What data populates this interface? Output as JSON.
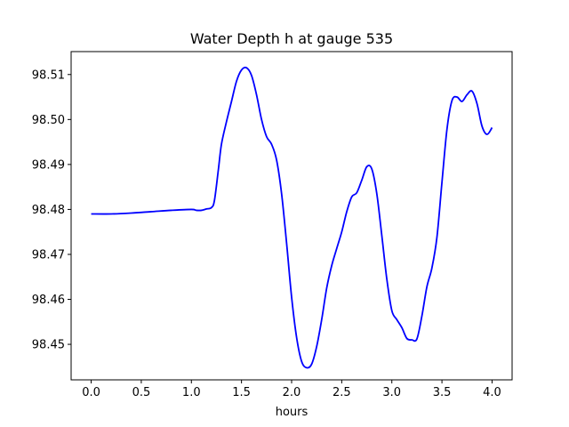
{
  "chart_data": {
    "type": "line",
    "title": "Water Depth h at gauge 535",
    "xlabel": "hours",
    "ylabel": "",
    "xlim": [
      -0.2,
      4.2
    ],
    "ylim": [
      98.4421,
      98.5151
    ],
    "x_ticks": [
      0.0,
      0.5,
      1.0,
      1.5,
      2.0,
      2.5,
      3.0,
      3.5,
      4.0
    ],
    "x_tick_labels": [
      "0.0",
      "0.5",
      "1.0",
      "1.5",
      "2.0",
      "2.5",
      "3.0",
      "3.5",
      "4.0"
    ],
    "y_ticks": [
      98.45,
      98.46,
      98.47,
      98.48,
      98.49,
      98.5,
      98.51
    ],
    "y_tick_labels": [
      "98.45",
      "98.46",
      "98.47",
      "98.48",
      "98.49",
      "98.50",
      "98.51"
    ],
    "grid": false,
    "legend": "none",
    "series": [
      {
        "color": "#0000ff",
        "x": [
          0.0,
          0.2,
          0.4,
          0.6,
          0.8,
          1.0,
          1.05,
          1.1,
          1.15,
          1.2,
          1.23,
          1.27,
          1.3,
          1.35,
          1.4,
          1.45,
          1.5,
          1.55,
          1.6,
          1.65,
          1.7,
          1.75,
          1.8,
          1.85,
          1.9,
          1.95,
          2.0,
          2.05,
          2.1,
          2.15,
          2.2,
          2.25,
          2.3,
          2.35,
          2.4,
          2.45,
          2.5,
          2.55,
          2.6,
          2.65,
          2.7,
          2.75,
          2.8,
          2.85,
          2.9,
          2.95,
          3.0,
          3.05,
          3.1,
          3.15,
          3.2,
          3.25,
          3.3,
          3.35,
          3.4,
          3.45,
          3.5,
          3.55,
          3.6,
          3.65,
          3.7,
          3.75,
          3.8,
          3.85,
          3.9,
          3.95,
          4.0
        ],
        "values": [
          98.479,
          98.479,
          98.4792,
          98.4795,
          98.4798,
          98.48,
          98.4798,
          98.4798,
          98.4801,
          98.4804,
          98.482,
          98.489,
          98.4945,
          98.4995,
          98.504,
          98.5085,
          98.511,
          98.5115,
          98.5098,
          98.5055,
          98.5,
          98.4962,
          98.4945,
          98.491,
          98.4835,
          98.4725,
          98.4605,
          98.4515,
          98.4462,
          98.4448,
          98.4456,
          98.4495,
          98.4555,
          98.4625,
          98.4675,
          98.4713,
          98.475,
          98.4795,
          98.4828,
          98.4837,
          98.4865,
          98.4895,
          98.489,
          98.4835,
          98.4742,
          98.4645,
          98.4575,
          98.4555,
          98.4537,
          98.4513,
          98.451,
          98.4512,
          98.4563,
          98.4628,
          98.467,
          98.4738,
          98.486,
          98.4978,
          98.5042,
          98.505,
          98.504,
          98.5055,
          98.5063,
          98.5035,
          98.4985,
          98.4967,
          98.4982
        ]
      }
    ]
  }
}
